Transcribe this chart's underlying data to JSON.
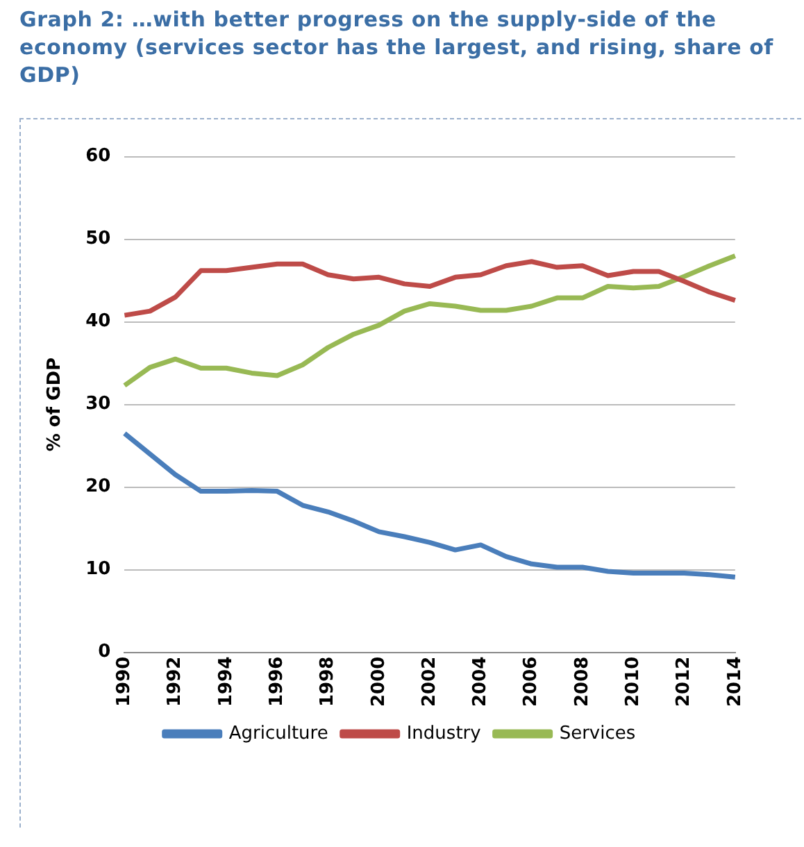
{
  "chart_data": {
    "type": "line",
    "title": "Graph 2: …with better progress on the supply-side of the economy (services sector has the largest, and rising, share of GDP)",
    "ylabel": "% of GDP",
    "categories": [
      "1990",
      null,
      "1992",
      null,
      "1994",
      null,
      "1996",
      null,
      "1998",
      null,
      "2000",
      null,
      "2002",
      null,
      "2004",
      null,
      "2006",
      null,
      "2008",
      null,
      "2010",
      null,
      "2012",
      null,
      "2014"
    ],
    "series": [
      {
        "name": "Agriculture",
        "color": "#4a7ebb",
        "values": [
          26.5,
          24,
          21.5,
          19.5,
          19.5,
          19.6,
          19.5,
          17.8,
          17,
          15.9,
          14.6,
          14,
          13.3,
          12.4,
          13,
          11.6,
          10.7,
          10.3,
          10.3,
          9.8,
          9.6,
          9.6,
          9.6,
          9.4,
          9.1
        ]
      },
      {
        "name": "Industry",
        "color": "#be4b48",
        "values": [
          40.8,
          41.3,
          43,
          46.2,
          46.2,
          46.6,
          47,
          47,
          45.7,
          45.2,
          45.4,
          44.6,
          44.3,
          45.4,
          45.7,
          46.8,
          47.3,
          46.6,
          46.8,
          45.6,
          46.1,
          46.1,
          44.9,
          43.6,
          42.6
        ]
      },
      {
        "name": "Services",
        "color": "#98b954",
        "values": [
          32.3,
          34.5,
          35.5,
          34.4,
          34.4,
          33.8,
          33.5,
          34.8,
          36.9,
          38.5,
          39.6,
          41.3,
          42.2,
          41.9,
          41.4,
          41.4,
          41.9,
          42.9,
          42.9,
          44.3,
          44.1,
          44.3,
          45.5,
          46.8,
          48
        ]
      }
    ],
    "ylim": [
      0,
      60
    ],
    "yticks": [
      0,
      10,
      20,
      30,
      40,
      50,
      60
    ],
    "grid": "y",
    "legend": "bottom",
    "marker": "none",
    "line_style": "solid"
  }
}
